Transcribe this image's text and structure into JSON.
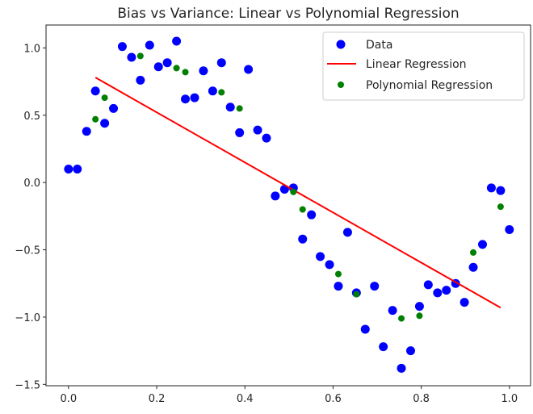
{
  "chart_data": {
    "type": "scatter",
    "title": "Bias vs Variance: Linear vs Polynomial Regression",
    "xlabel": "",
    "ylabel": "",
    "xlim": [
      -0.051,
      1.048
    ],
    "ylim": [
      -1.51,
      1.17
    ],
    "xticks": [
      0.0,
      0.2,
      0.4,
      0.6,
      0.8,
      1.0
    ],
    "xtick_labels": [
      "0.0",
      "0.2",
      "0.4",
      "0.6",
      "0.8",
      "1.0"
    ],
    "yticks": [
      -1.5,
      -1.0,
      -0.5,
      0.0,
      0.5,
      1.0
    ],
    "ytick_labels": [
      "−1.5",
      "−1.0",
      "−0.5",
      "0.0",
      "0.5",
      "1.0"
    ],
    "grid": false,
    "legend_position": "top-right",
    "series": [
      {
        "name": "Data",
        "kind": "scatter",
        "color": "#0000ff",
        "x": [
          0.0,
          0.02,
          0.041,
          0.061,
          0.082,
          0.102,
          0.122,
          0.143,
          0.163,
          0.184,
          0.204,
          0.224,
          0.245,
          0.265,
          0.286,
          0.306,
          0.327,
          0.347,
          0.367,
          0.388,
          0.408,
          0.429,
          0.449,
          0.469,
          0.49,
          0.51,
          0.531,
          0.551,
          0.571,
          0.592,
          0.612,
          0.633,
          0.653,
          0.673,
          0.694,
          0.714,
          0.735,
          0.755,
          0.776,
          0.796,
          0.816,
          0.837,
          0.857,
          0.878,
          0.898,
          0.918,
          0.939,
          0.959,
          0.98,
          1.0
        ],
        "y": [
          0.1,
          0.1,
          0.38,
          0.68,
          0.44,
          0.55,
          1.01,
          0.93,
          0.76,
          1.02,
          0.86,
          0.89,
          1.05,
          0.62,
          0.63,
          0.83,
          0.68,
          0.89,
          0.56,
          0.37,
          0.84,
          0.39,
          0.33,
          -0.1,
          -0.05,
          -0.04,
          -0.42,
          -0.24,
          -0.55,
          -0.61,
          -0.77,
          -0.37,
          -0.82,
          -1.09,
          -0.77,
          -1.22,
          -0.95,
          -1.38,
          -1.25,
          -0.92,
          -0.76,
          -0.82,
          -0.8,
          -0.75,
          -0.89,
          -0.63,
          -0.46,
          -0.04,
          -0.06,
          -0.35
        ]
      },
      {
        "name": "Linear Regression",
        "kind": "line",
        "color": "#ff0000",
        "x": [
          0.061,
          0.98
        ],
        "y": [
          0.78,
          -0.93
        ]
      },
      {
        "name": "Polynomial Regression",
        "kind": "scatter",
        "color": "#008000",
        "x": [
          0.061,
          0.082,
          0.163,
          0.245,
          0.265,
          0.347,
          0.388,
          0.51,
          0.531,
          0.612,
          0.653,
          0.755,
          0.796,
          0.918,
          0.98
        ],
        "y": [
          0.47,
          0.63,
          0.94,
          0.85,
          0.82,
          0.67,
          0.55,
          -0.07,
          -0.2,
          -0.68,
          -0.83,
          -1.01,
          -0.99,
          -0.52,
          -0.18
        ]
      }
    ]
  }
}
